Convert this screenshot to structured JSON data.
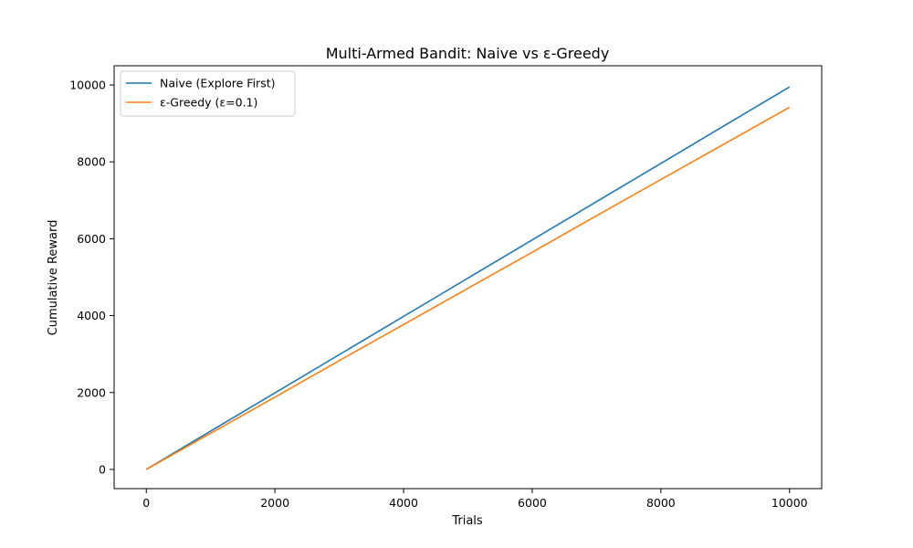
{
  "chart_data": {
    "type": "line",
    "title": "Multi-Armed Bandit: Naive vs ε-Greedy",
    "xlabel": "Trials",
    "ylabel": "Cumulative Reward",
    "xlim": [
      -500,
      10500
    ],
    "ylim": [
      -500,
      10500
    ],
    "xticks": [
      0,
      2000,
      4000,
      6000,
      8000,
      10000
    ],
    "yticks": [
      0,
      2000,
      4000,
      6000,
      8000,
      10000
    ],
    "grid": false,
    "legend_position": "top-left",
    "series": [
      {
        "name": "Naive (Explore First)",
        "color": "#1f77b4",
        "x": [
          0,
          10000
        ],
        "y": [
          0,
          9950
        ]
      },
      {
        "name": "ε-Greedy (ε=0.1)",
        "color": "#ff7f0e",
        "x": [
          0,
          1000,
          2000,
          3000,
          4000,
          5000,
          6000,
          7000,
          8000,
          9000,
          10000
        ],
        "y": [
          0,
          940,
          1880,
          2830,
          3770,
          4710,
          5650,
          6600,
          7540,
          8480,
          9420
        ]
      }
    ]
  }
}
